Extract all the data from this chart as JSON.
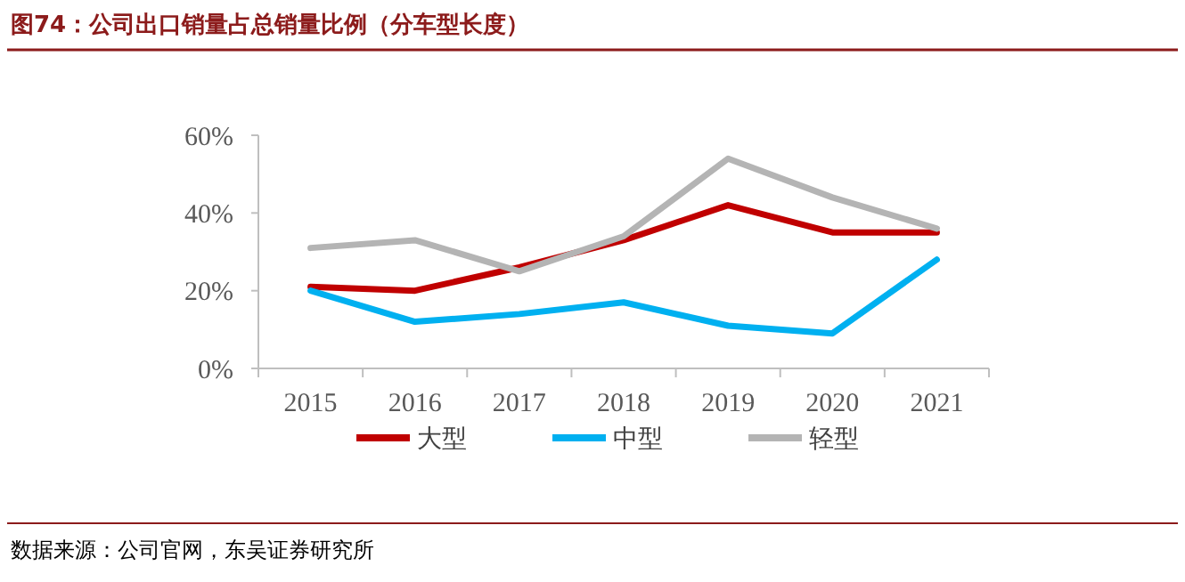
{
  "chart_data": {
    "type": "line",
    "title": "图74：公司出口销量占总销量比例（分车型长度）",
    "categories": [
      "2015",
      "2016",
      "2017",
      "2018",
      "2019",
      "2020",
      "2021"
    ],
    "series": [
      {
        "name": "大型",
        "color": "#c00000",
        "values": [
          21,
          20,
          26,
          33,
          42,
          35,
          35
        ]
      },
      {
        "name": "中型",
        "color": "#00b0f0",
        "values": [
          20,
          12,
          14,
          17,
          11,
          9,
          28
        ]
      },
      {
        "name": "轻型",
        "color": "#b4b4b4",
        "values": [
          31,
          33,
          25,
          34,
          54,
          44,
          36
        ]
      }
    ],
    "ylim": [
      0,
      60
    ],
    "yticks": [
      {
        "value": 0,
        "label": "0%"
      },
      {
        "value": 20,
        "label": "20%"
      },
      {
        "value": 40,
        "label": "40%"
      },
      {
        "value": 60,
        "label": "60%"
      }
    ],
    "grid": false,
    "legend": "bottom",
    "marker": "none",
    "line_style": "solid",
    "annotations": [
      "数据来源：公司官网，东吴证券研究所"
    ]
  }
}
